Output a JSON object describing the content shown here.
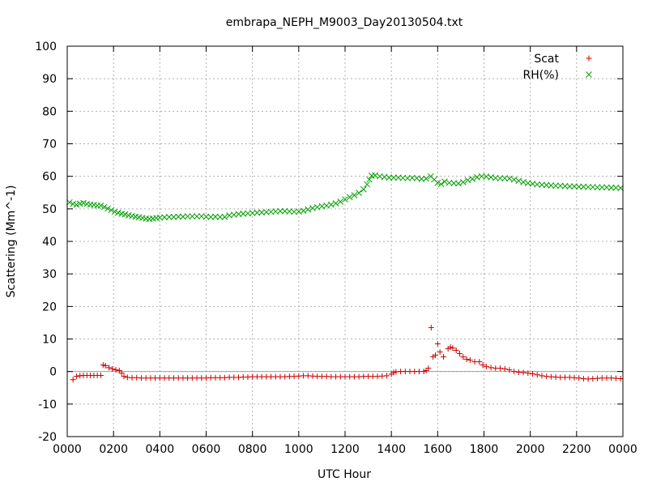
{
  "chart_data": {
    "type": "scatter",
    "title": "embrapa_NEPH_M9003_Day20130504.txt",
    "xlabel": "UTC Hour",
    "ylabel": "Scattering (Mm^-1)",
    "xlim": [
      0,
      24
    ],
    "ylim": [
      -20,
      100
    ],
    "x_ticks": [
      0,
      2,
      4,
      6,
      8,
      10,
      12,
      14,
      16,
      18,
      20,
      22,
      24
    ],
    "x_tick_labels": [
      "0000",
      "0200",
      "0400",
      "0600",
      "0800",
      "1000",
      "1200",
      "1400",
      "1600",
      "1800",
      "2000",
      "2200",
      "0000"
    ],
    "y_ticks": [
      -20,
      -10,
      0,
      10,
      20,
      30,
      40,
      50,
      60,
      70,
      80,
      90,
      100
    ],
    "y_tick_labels": [
      "-20",
      "-10",
      "0",
      "10",
      "20",
      "30",
      "40",
      "50",
      "60",
      "70",
      "80",
      "90",
      "100"
    ],
    "grid": true,
    "zero_line": true,
    "legend_position": "top-right",
    "series": [
      {
        "name": "Scat",
        "marker": "plus",
        "color": "#cc0000",
        "points": [
          [
            0.25,
            -2.5
          ],
          [
            0.4,
            -1.5
          ],
          [
            0.55,
            -1.3
          ],
          [
            0.7,
            -1.2
          ],
          [
            0.85,
            -1.2
          ],
          [
            1.0,
            -1.2
          ],
          [
            1.15,
            -1.2
          ],
          [
            1.3,
            -1.2
          ],
          [
            1.45,
            -1.2
          ],
          [
            1.55,
            2.0
          ],
          [
            1.65,
            1.8
          ],
          [
            1.8,
            1.2
          ],
          [
            1.95,
            0.8
          ],
          [
            2.1,
            0.5
          ],
          [
            2.25,
            0.3
          ],
          [
            2.35,
            -0.5
          ],
          [
            2.45,
            -1.5
          ],
          [
            2.6,
            -1.8
          ],
          [
            2.8,
            -1.9
          ],
          [
            3.0,
            -1.9
          ],
          [
            3.2,
            -2.0
          ],
          [
            3.4,
            -2.0
          ],
          [
            3.6,
            -2.0
          ],
          [
            3.8,
            -2.0
          ],
          [
            4.0,
            -2.0
          ],
          [
            4.2,
            -2.0
          ],
          [
            4.4,
            -2.0
          ],
          [
            4.6,
            -2.0
          ],
          [
            4.8,
            -2.0
          ],
          [
            5.0,
            -2.0
          ],
          [
            5.2,
            -2.0
          ],
          [
            5.4,
            -2.0
          ],
          [
            5.6,
            -2.0
          ],
          [
            5.8,
            -2.0
          ],
          [
            6.0,
            -2.0
          ],
          [
            6.2,
            -1.9
          ],
          [
            6.4,
            -1.9
          ],
          [
            6.6,
            -1.9
          ],
          [
            6.8,
            -1.9
          ],
          [
            7.0,
            -1.8
          ],
          [
            7.2,
            -1.8
          ],
          [
            7.4,
            -1.8
          ],
          [
            7.6,
            -1.7
          ],
          [
            7.8,
            -1.7
          ],
          [
            8.0,
            -1.6
          ],
          [
            8.2,
            -1.6
          ],
          [
            8.4,
            -1.6
          ],
          [
            8.6,
            -1.6
          ],
          [
            8.8,
            -1.6
          ],
          [
            9.0,
            -1.6
          ],
          [
            9.2,
            -1.6
          ],
          [
            9.4,
            -1.6
          ],
          [
            9.6,
            -1.5
          ],
          [
            9.8,
            -1.5
          ],
          [
            10.0,
            -1.4
          ],
          [
            10.2,
            -1.3
          ],
          [
            10.4,
            -1.3
          ],
          [
            10.6,
            -1.4
          ],
          [
            10.8,
            -1.5
          ],
          [
            11.0,
            -1.5
          ],
          [
            11.2,
            -1.5
          ],
          [
            11.4,
            -1.6
          ],
          [
            11.6,
            -1.6
          ],
          [
            11.8,
            -1.6
          ],
          [
            12.0,
            -1.6
          ],
          [
            12.2,
            -1.6
          ],
          [
            12.4,
            -1.6
          ],
          [
            12.6,
            -1.6
          ],
          [
            12.8,
            -1.5
          ],
          [
            13.0,
            -1.5
          ],
          [
            13.2,
            -1.5
          ],
          [
            13.4,
            -1.5
          ],
          [
            13.6,
            -1.4
          ],
          [
            13.8,
            -1.3
          ],
          [
            14.0,
            -0.8
          ],
          [
            14.1,
            -0.3
          ],
          [
            14.2,
            -0.1
          ],
          [
            14.4,
            0.0
          ],
          [
            14.6,
            0.0
          ],
          [
            14.8,
            0.0
          ],
          [
            15.0,
            0.0
          ],
          [
            15.2,
            0.0
          ],
          [
            15.4,
            0.0
          ],
          [
            15.5,
            0.3
          ],
          [
            15.6,
            1.0
          ],
          [
            15.72,
            13.5
          ],
          [
            15.8,
            4.5
          ],
          [
            15.9,
            5.0
          ],
          [
            16.0,
            8.5
          ],
          [
            16.1,
            6.0
          ],
          [
            16.25,
            4.5
          ],
          [
            16.45,
            7.0
          ],
          [
            16.55,
            7.5
          ],
          [
            16.65,
            7.2
          ],
          [
            16.8,
            6.5
          ],
          [
            16.95,
            5.5
          ],
          [
            17.1,
            4.5
          ],
          [
            17.25,
            3.8
          ],
          [
            17.4,
            3.5
          ],
          [
            17.6,
            3.0
          ],
          [
            17.8,
            3.0
          ],
          [
            17.95,
            2.0
          ],
          [
            18.1,
            1.5
          ],
          [
            18.3,
            1.2
          ],
          [
            18.5,
            1.0
          ],
          [
            18.7,
            1.0
          ],
          [
            18.9,
            0.8
          ],
          [
            19.1,
            0.5
          ],
          [
            19.3,
            0.0
          ],
          [
            19.5,
            -0.2
          ],
          [
            19.7,
            -0.3
          ],
          [
            19.9,
            -0.5
          ],
          [
            20.1,
            -0.7
          ],
          [
            20.3,
            -1.0
          ],
          [
            20.5,
            -1.3
          ],
          [
            20.7,
            -1.5
          ],
          [
            20.9,
            -1.6
          ],
          [
            21.1,
            -1.7
          ],
          [
            21.3,
            -1.8
          ],
          [
            21.5,
            -1.8
          ],
          [
            21.7,
            -1.8
          ],
          [
            21.9,
            -1.9
          ],
          [
            22.1,
            -2.0
          ],
          [
            22.3,
            -2.2
          ],
          [
            22.5,
            -2.3
          ],
          [
            22.7,
            -2.2
          ],
          [
            22.9,
            -2.1
          ],
          [
            23.1,
            -2.0
          ],
          [
            23.3,
            -2.0
          ],
          [
            23.5,
            -2.0
          ],
          [
            23.7,
            -2.1
          ],
          [
            23.9,
            -2.2
          ]
        ]
      },
      {
        "name": "RH(%)",
        "marker": "cross",
        "color": "#00a000",
        "points": [
          [
            0.1,
            52.0
          ],
          [
            0.25,
            51.5
          ],
          [
            0.4,
            51.3
          ],
          [
            0.55,
            51.6
          ],
          [
            0.7,
            51.8
          ],
          [
            0.85,
            51.5
          ],
          [
            1.0,
            51.3
          ],
          [
            1.15,
            51.2
          ],
          [
            1.3,
            51.0
          ],
          [
            1.45,
            51.0
          ],
          [
            1.6,
            50.6
          ],
          [
            1.75,
            50.1
          ],
          [
            1.9,
            49.6
          ],
          [
            2.05,
            49.1
          ],
          [
            2.2,
            48.8
          ],
          [
            2.35,
            48.5
          ],
          [
            2.5,
            48.3
          ],
          [
            2.65,
            48.0
          ],
          [
            2.8,
            47.8
          ],
          [
            2.95,
            47.6
          ],
          [
            3.1,
            47.4
          ],
          [
            3.25,
            47.2
          ],
          [
            3.4,
            47.0
          ],
          [
            3.55,
            46.9
          ],
          [
            3.7,
            47.0
          ],
          [
            3.85,
            47.2
          ],
          [
            4.0,
            47.3
          ],
          [
            4.2,
            47.4
          ],
          [
            4.4,
            47.5
          ],
          [
            4.6,
            47.5
          ],
          [
            4.8,
            47.6
          ],
          [
            5.0,
            47.6
          ],
          [
            5.2,
            47.7
          ],
          [
            5.4,
            47.7
          ],
          [
            5.6,
            47.7
          ],
          [
            5.8,
            47.7
          ],
          [
            6.0,
            47.6
          ],
          [
            6.2,
            47.5
          ],
          [
            6.4,
            47.6
          ],
          [
            6.6,
            47.5
          ],
          [
            6.8,
            47.5
          ],
          [
            7.0,
            48.0
          ],
          [
            7.2,
            48.2
          ],
          [
            7.4,
            48.4
          ],
          [
            7.6,
            48.5
          ],
          [
            7.8,
            48.6
          ],
          [
            8.0,
            48.7
          ],
          [
            8.2,
            48.8
          ],
          [
            8.4,
            48.9
          ],
          [
            8.6,
            49.0
          ],
          [
            8.8,
            49.1
          ],
          [
            9.0,
            49.2
          ],
          [
            9.2,
            49.3
          ],
          [
            9.4,
            49.3
          ],
          [
            9.6,
            49.2
          ],
          [
            9.8,
            49.1
          ],
          [
            10.0,
            49.2
          ],
          [
            10.2,
            49.4
          ],
          [
            10.4,
            49.8
          ],
          [
            10.6,
            50.2
          ],
          [
            10.8,
            50.5
          ],
          [
            11.0,
            50.8
          ],
          [
            11.2,
            51.0
          ],
          [
            11.4,
            51.3
          ],
          [
            11.6,
            51.7
          ],
          [
            11.8,
            52.2
          ],
          [
            12.0,
            52.9
          ],
          [
            12.2,
            53.6
          ],
          [
            12.4,
            54.2
          ],
          [
            12.6,
            54.9
          ],
          [
            12.8,
            56.0
          ],
          [
            12.95,
            57.5
          ],
          [
            13.05,
            59.0
          ],
          [
            13.15,
            60.2
          ],
          [
            13.3,
            60.3
          ],
          [
            13.5,
            60.0
          ],
          [
            13.7,
            59.8
          ],
          [
            13.9,
            59.6
          ],
          [
            14.1,
            59.6
          ],
          [
            14.3,
            59.6
          ],
          [
            14.5,
            59.5
          ],
          [
            14.7,
            59.4
          ],
          [
            14.9,
            59.5
          ],
          [
            15.1,
            59.4
          ],
          [
            15.3,
            59.2
          ],
          [
            15.5,
            59.3
          ],
          [
            15.7,
            60.0
          ],
          [
            15.85,
            59.0
          ],
          [
            16.0,
            58.0
          ],
          [
            16.15,
            57.6
          ],
          [
            16.3,
            58.4
          ],
          [
            16.5,
            58.0
          ],
          [
            16.7,
            57.9
          ],
          [
            16.9,
            57.8
          ],
          [
            17.1,
            58.2
          ],
          [
            17.3,
            58.8
          ],
          [
            17.5,
            59.2
          ],
          [
            17.7,
            59.7
          ],
          [
            17.9,
            60.0
          ],
          [
            18.1,
            59.9
          ],
          [
            18.3,
            59.7
          ],
          [
            18.5,
            59.5
          ],
          [
            18.7,
            59.4
          ],
          [
            18.9,
            59.4
          ],
          [
            19.1,
            59.3
          ],
          [
            19.3,
            59.0
          ],
          [
            19.5,
            58.6
          ],
          [
            19.7,
            58.2
          ],
          [
            19.9,
            57.9
          ],
          [
            20.1,
            57.7
          ],
          [
            20.3,
            57.5
          ],
          [
            20.5,
            57.4
          ],
          [
            20.7,
            57.3
          ],
          [
            20.9,
            57.2
          ],
          [
            21.1,
            57.1
          ],
          [
            21.3,
            57.1
          ],
          [
            21.5,
            57.0
          ],
          [
            21.7,
            56.9
          ],
          [
            21.9,
            56.9
          ],
          [
            22.1,
            56.8
          ],
          [
            22.3,
            56.8
          ],
          [
            22.5,
            56.7
          ],
          [
            22.7,
            56.7
          ],
          [
            22.9,
            56.6
          ],
          [
            23.1,
            56.6
          ],
          [
            23.3,
            56.6
          ],
          [
            23.5,
            56.5
          ],
          [
            23.7,
            56.5
          ],
          [
            23.9,
            56.4
          ]
        ]
      }
    ]
  }
}
